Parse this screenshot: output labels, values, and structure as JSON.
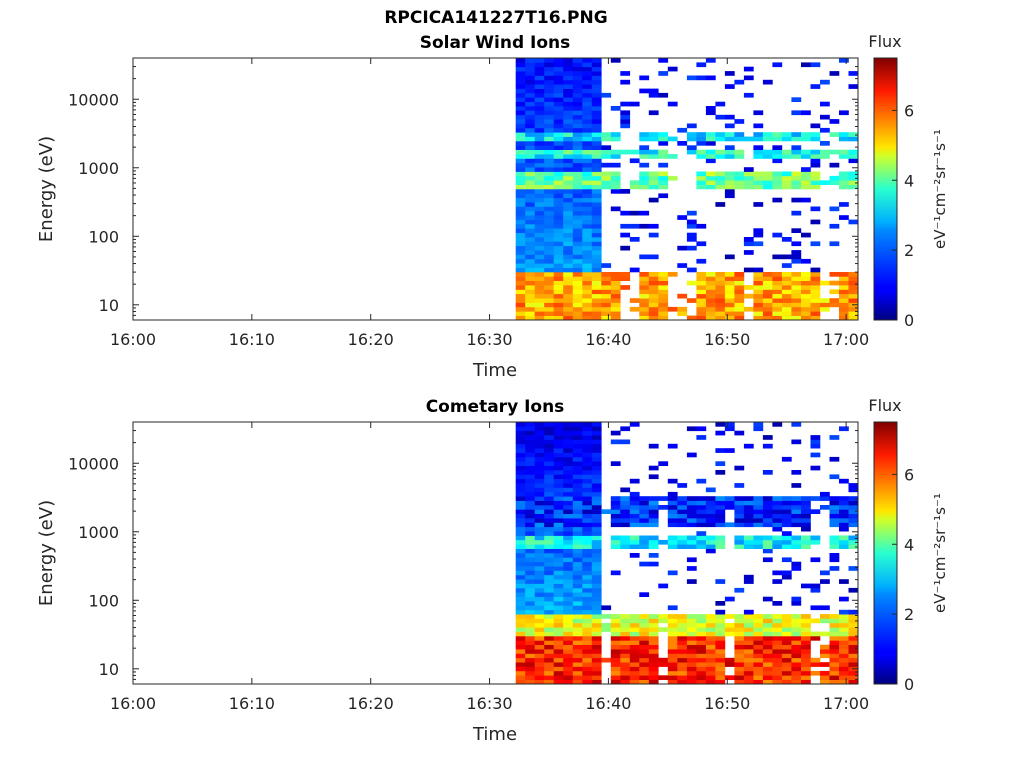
{
  "figure": {
    "title_line1": "RPCICA141227T16.PNG"
  },
  "colorbar": {
    "title": "Flux",
    "label": "eV⁻¹cm⁻²sr⁻¹s⁻¹",
    "ticks": [
      "0",
      "2",
      "4",
      "6"
    ],
    "range": [
      0,
      7.5
    ],
    "colormap": "jet"
  },
  "chart_data": [
    {
      "type": "heatmap",
      "title": "Solar Wind Ions",
      "xlabel": "Time",
      "ylabel": "Energy (eV)",
      "x_ticks": [
        "16:00",
        "16:10",
        "16:20",
        "16:30",
        "16:40",
        "16:50",
        "17:00"
      ],
      "y_ticks": [
        "10",
        "100",
        "1000",
        "10000"
      ],
      "y_scale": "log",
      "xlim_minutes": [
        0,
        61
      ],
      "ylim": [
        6,
        40000
      ],
      "data_start_minute": 32.2,
      "data_end_minute": 60.8,
      "bands": [
        {
          "e_min": 6,
          "e_max": 30,
          "flux": 5.3
        },
        {
          "e_min": 500,
          "e_max": 900,
          "flux": 3.6
        },
        {
          "e_min": 1300,
          "e_max": 1800,
          "flux": 3.0
        },
        {
          "e_min": 2500,
          "e_max": 3500,
          "flux": 2.7
        }
      ],
      "colorbar_title": "Flux"
    },
    {
      "type": "heatmap",
      "title": "Cometary Ions",
      "xlabel": "Time",
      "ylabel": "Energy (eV)",
      "x_ticks": [
        "16:00",
        "16:10",
        "16:20",
        "16:30",
        "16:40",
        "16:50",
        "17:00"
      ],
      "y_ticks": [
        "10",
        "100",
        "1000",
        "10000"
      ],
      "y_scale": "log",
      "xlim_minutes": [
        0,
        61
      ],
      "ylim": [
        6,
        40000
      ],
      "data_start_minute": 32.2,
      "data_end_minute": 60.8,
      "bands": [
        {
          "e_min": 6,
          "e_max": 30,
          "flux": 6.3
        },
        {
          "e_min": 30,
          "e_max": 60,
          "flux": 4.5
        },
        {
          "e_min": 600,
          "e_max": 900,
          "flux": 2.8
        },
        {
          "e_min": 1200,
          "e_max": 3500,
          "flux": 1.2
        }
      ],
      "colorbar_title": "Flux"
    }
  ]
}
